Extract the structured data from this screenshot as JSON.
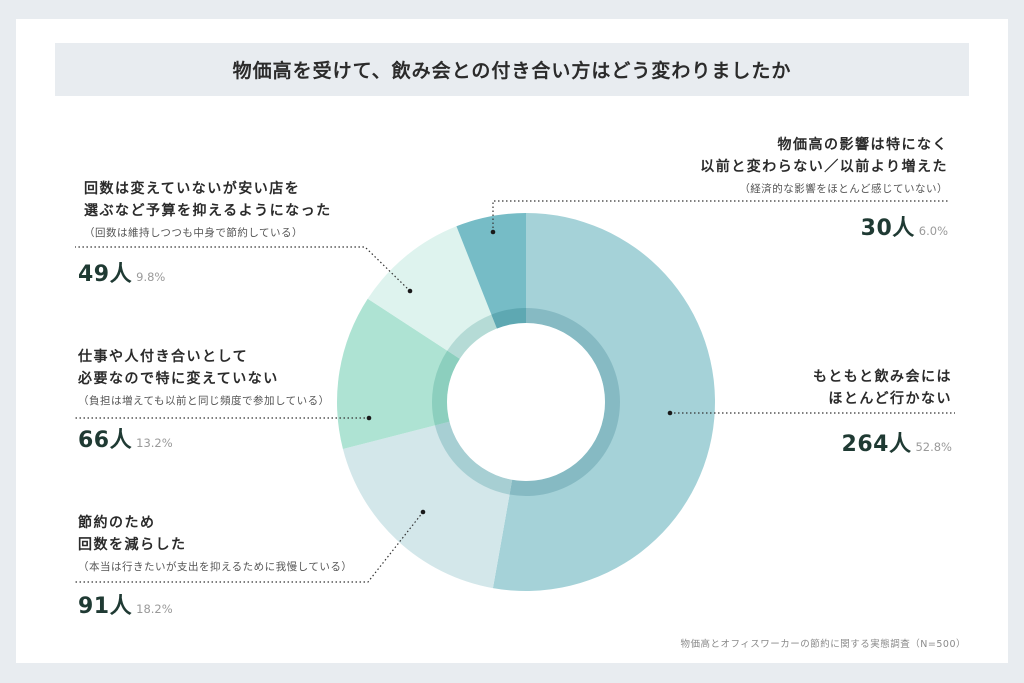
{
  "title": "物価高を受けて、飲み会との付き合い方はどう変わりましたか",
  "source": "物価高とオフィスワーカーの節約に関する実態調査（N=500）",
  "colors": {
    "background": "#e8ecf0",
    "card": "#ffffff",
    "title_bar": "#e8ecf0",
    "slice_264": "#a5d2d8",
    "slice_91": "#d3e7ea",
    "slice_66": "#aee3d3",
    "slice_49": "#def3ee",
    "slice_30": "#76bcc6"
  },
  "items": [
    {
      "key": "rarely",
      "main_lines": [
        "もともと飲み会には",
        "ほとんど行かない"
      ],
      "sub": "",
      "count": "264人",
      "pct": "52.8%"
    },
    {
      "key": "reduced",
      "main_lines": [
        "節約のため",
        "回数を減らした"
      ],
      "sub": "（本当は行きたいが支出を抑えるために我慢している）",
      "count": "91人",
      "pct": "18.2%"
    },
    {
      "key": "unchanged_necessary",
      "main_lines": [
        "仕事や人付き合いとして",
        "必要なので特に変えていない"
      ],
      "sub": "（負担は増えても以前と同じ頻度で参加している）",
      "count": "66人",
      "pct": "13.2%"
    },
    {
      "key": "cheaper",
      "main_lines": [
        "回数は変えていないが安い店を",
        "選ぶなど予算を抑えるようになった"
      ],
      "sub": "（回数は維持しつつも中身で節約している）",
      "count": "49人",
      "pct": "9.8%"
    },
    {
      "key": "no_impact",
      "main_lines": [
        "物価高の影響は特になく",
        "以前と変わらない／以前より増えた"
      ],
      "sub": "（経済的な影響をほとんど感じていない）",
      "count": "30人",
      "pct": "6.0%"
    }
  ],
  "chart_data": {
    "type": "pie",
    "subtype": "donut",
    "title": "物価高を受けて、飲み会との付き合い方はどう変わりましたか",
    "categories": [
      "もともと飲み会にはほとんど行かない",
      "節約のため回数を減らした",
      "仕事や人付き合いとして必要なので特に変えていない",
      "回数は変えていないが安い店を選ぶなど予算を抑えるようになった",
      "物価高の影響は特になく以前と変わらない／以前より増えた"
    ],
    "values": [
      264,
      91,
      66,
      49,
      30
    ],
    "percentages": [
      52.8,
      18.2,
      13.2,
      9.8,
      6.0
    ],
    "unit": "人",
    "total": 500,
    "start_angle": "12 o'clock, clockwise",
    "legend": "inline labels with dotted leader lines",
    "source": "物価高とオフィスワーカーの節約に関する実態調査（N=500）"
  }
}
